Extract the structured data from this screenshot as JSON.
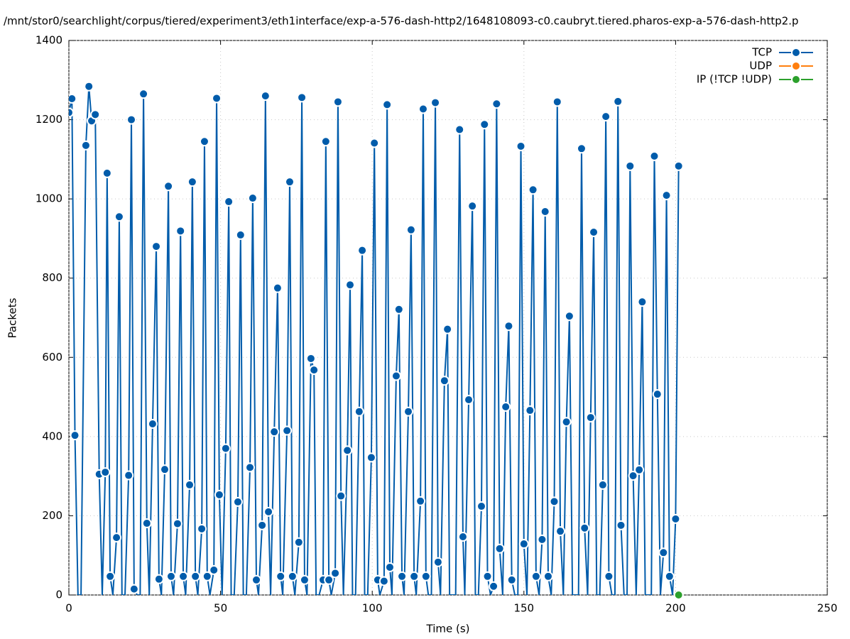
{
  "chart_data": {
    "type": "line",
    "title": "/mnt/stor0/searchlight/corpus/tiered/experiment3/eth1interface/exp-a-576-dash-http2/1648108093-c0.caubryt.tiered.pharos-exp-a-576-dash-http2.p",
    "x_label": "Time (s)",
    "y_label": "Packets",
    "xlim": [
      0,
      250
    ],
    "xticks": [
      0,
      50,
      100,
      150,
      200,
      250
    ],
    "ylim": [
      0,
      1400
    ],
    "yticks": [
      0,
      200,
      400,
      600,
      800,
      1000,
      1200,
      1400
    ],
    "grid": true,
    "legend": "top-right",
    "series": [
      {
        "name": "TCP",
        "color": "#005cab",
        "x": [
          0,
          1,
          2,
          3,
          4,
          5.6,
          6.6,
          7.5,
          8.7,
          10,
          11,
          12,
          12.6,
          13.6,
          14.5,
          15.7,
          16.6,
          17.5,
          18.5,
          19.7,
          20.6,
          21.5,
          22.5,
          23.5,
          24.6,
          25.7,
          26.5,
          27.6,
          28.8,
          29.7,
          30.5,
          31.6,
          32.8,
          33.7,
          34.5,
          35.8,
          36.8,
          37.7,
          38.5,
          39.8,
          40.7,
          41.7,
          42.5,
          43.8,
          44.7,
          45.6,
          46.5,
          47.8,
          48.7,
          49.6,
          50.5,
          51.7,
          52.7,
          53.5,
          54.5,
          55.7,
          56.6,
          57.5,
          58.5,
          59.7,
          60.6,
          61.8,
          62.5,
          63.7,
          64.8,
          65.8,
          66.5,
          67.7,
          68.8,
          69.8,
          70.5,
          71.9,
          72.8,
          73.7,
          74.5,
          75.8,
          76.8,
          77.7,
          78.5,
          79.8,
          80.8,
          81.5,
          82.5,
          83.8,
          84.7,
          85.7,
          86.5,
          87.8,
          88.7,
          89.7,
          90.5,
          91.8,
          92.7,
          93.5,
          94.5,
          95.7,
          96.7,
          97.5,
          98.5,
          99.7,
          100.7,
          101.8,
          102.5,
          103.9,
          104.9,
          105.8,
          106.5,
          107.9,
          108.8,
          109.8,
          110.5,
          111.9,
          112.8,
          113.8,
          114.5,
          115.9,
          116.8,
          117.7,
          118.5,
          119.5,
          120.8,
          121.7,
          122.5,
          123.8,
          124.8,
          125.5,
          126.5,
          127.5,
          128.8,
          129.9,
          130.5,
          131.8,
          133,
          134,
          135,
          136,
          137,
          138,
          139,
          140,
          141,
          142,
          143,
          144,
          145,
          146,
          147,
          148,
          149,
          150,
          151,
          152,
          153,
          154,
          155,
          156,
          157,
          158,
          159,
          160,
          161,
          162,
          163,
          164,
          165,
          166,
          167,
          168,
          169,
          170,
          171,
          172,
          173,
          174,
          175,
          176,
          177,
          178,
          179,
          180,
          181,
          182,
          183,
          184,
          185,
          186,
          187,
          188,
          189,
          190,
          191,
          192,
          193,
          194,
          195,
          196,
          197,
          198,
          199,
          200,
          201
        ],
        "values": [
          1218,
          1253,
          403,
          0,
          0,
          1135,
          1284,
          1197,
          1213,
          305,
          0,
          310,
          1065,
          47,
          0,
          145,
          955,
          0,
          0,
          302,
          1200,
          15,
          0,
          0,
          1265,
          181,
          0,
          432,
          880,
          40,
          0,
          317,
          1032,
          47,
          0,
          180,
          919,
          47,
          0,
          278,
          1043,
          47,
          0,
          167,
          1145,
          47,
          0,
          63,
          1254,
          253,
          0,
          370,
          993,
          0,
          0,
          235,
          909,
          0,
          0,
          322,
          1002,
          38,
          0,
          176,
          1260,
          210,
          0,
          412,
          775,
          47,
          0,
          415,
          1043,
          47,
          0,
          133,
          1256,
          38,
          0,
          597,
          568,
          0,
          0,
          38,
          1145,
          38,
          0,
          55,
          1245,
          250,
          0,
          365,
          783,
          0,
          0,
          463,
          870,
          0,
          0,
          347,
          1141,
          38,
          0,
          35,
          1238,
          70,
          0,
          553,
          721,
          47,
          0,
          463,
          922,
          47,
          0,
          237,
          1227,
          47,
          0,
          0,
          1243,
          83,
          0,
          541,
          671,
          0,
          0,
          0,
          1175,
          147,
          0,
          493,
          982,
          0,
          0,
          224,
          1188,
          47,
          0,
          22,
          1240,
          117,
          0,
          475,
          679,
          38,
          0,
          0,
          1133,
          129,
          0,
          466,
          1023,
          47,
          0,
          140,
          968,
          47,
          0,
          236,
          1245,
          161,
          0,
          437,
          704,
          0,
          0,
          0,
          1127,
          169,
          0,
          448,
          916,
          0,
          0,
          278,
          1208,
          47,
          0,
          0,
          1246,
          176,
          0,
          0,
          1083,
          301,
          0,
          316,
          740,
          0,
          0,
          0,
          1108,
          507,
          0,
          107,
          1009,
          47,
          0,
          192,
          1083
        ]
      },
      {
        "name": "UDP",
        "color": "#ff7f0e",
        "x": [],
        "values": []
      },
      {
        "name": "IP (!TCP  !UDP)",
        "color": "#2ca02c",
        "x": [
          201
        ],
        "values": [
          0
        ]
      }
    ]
  }
}
